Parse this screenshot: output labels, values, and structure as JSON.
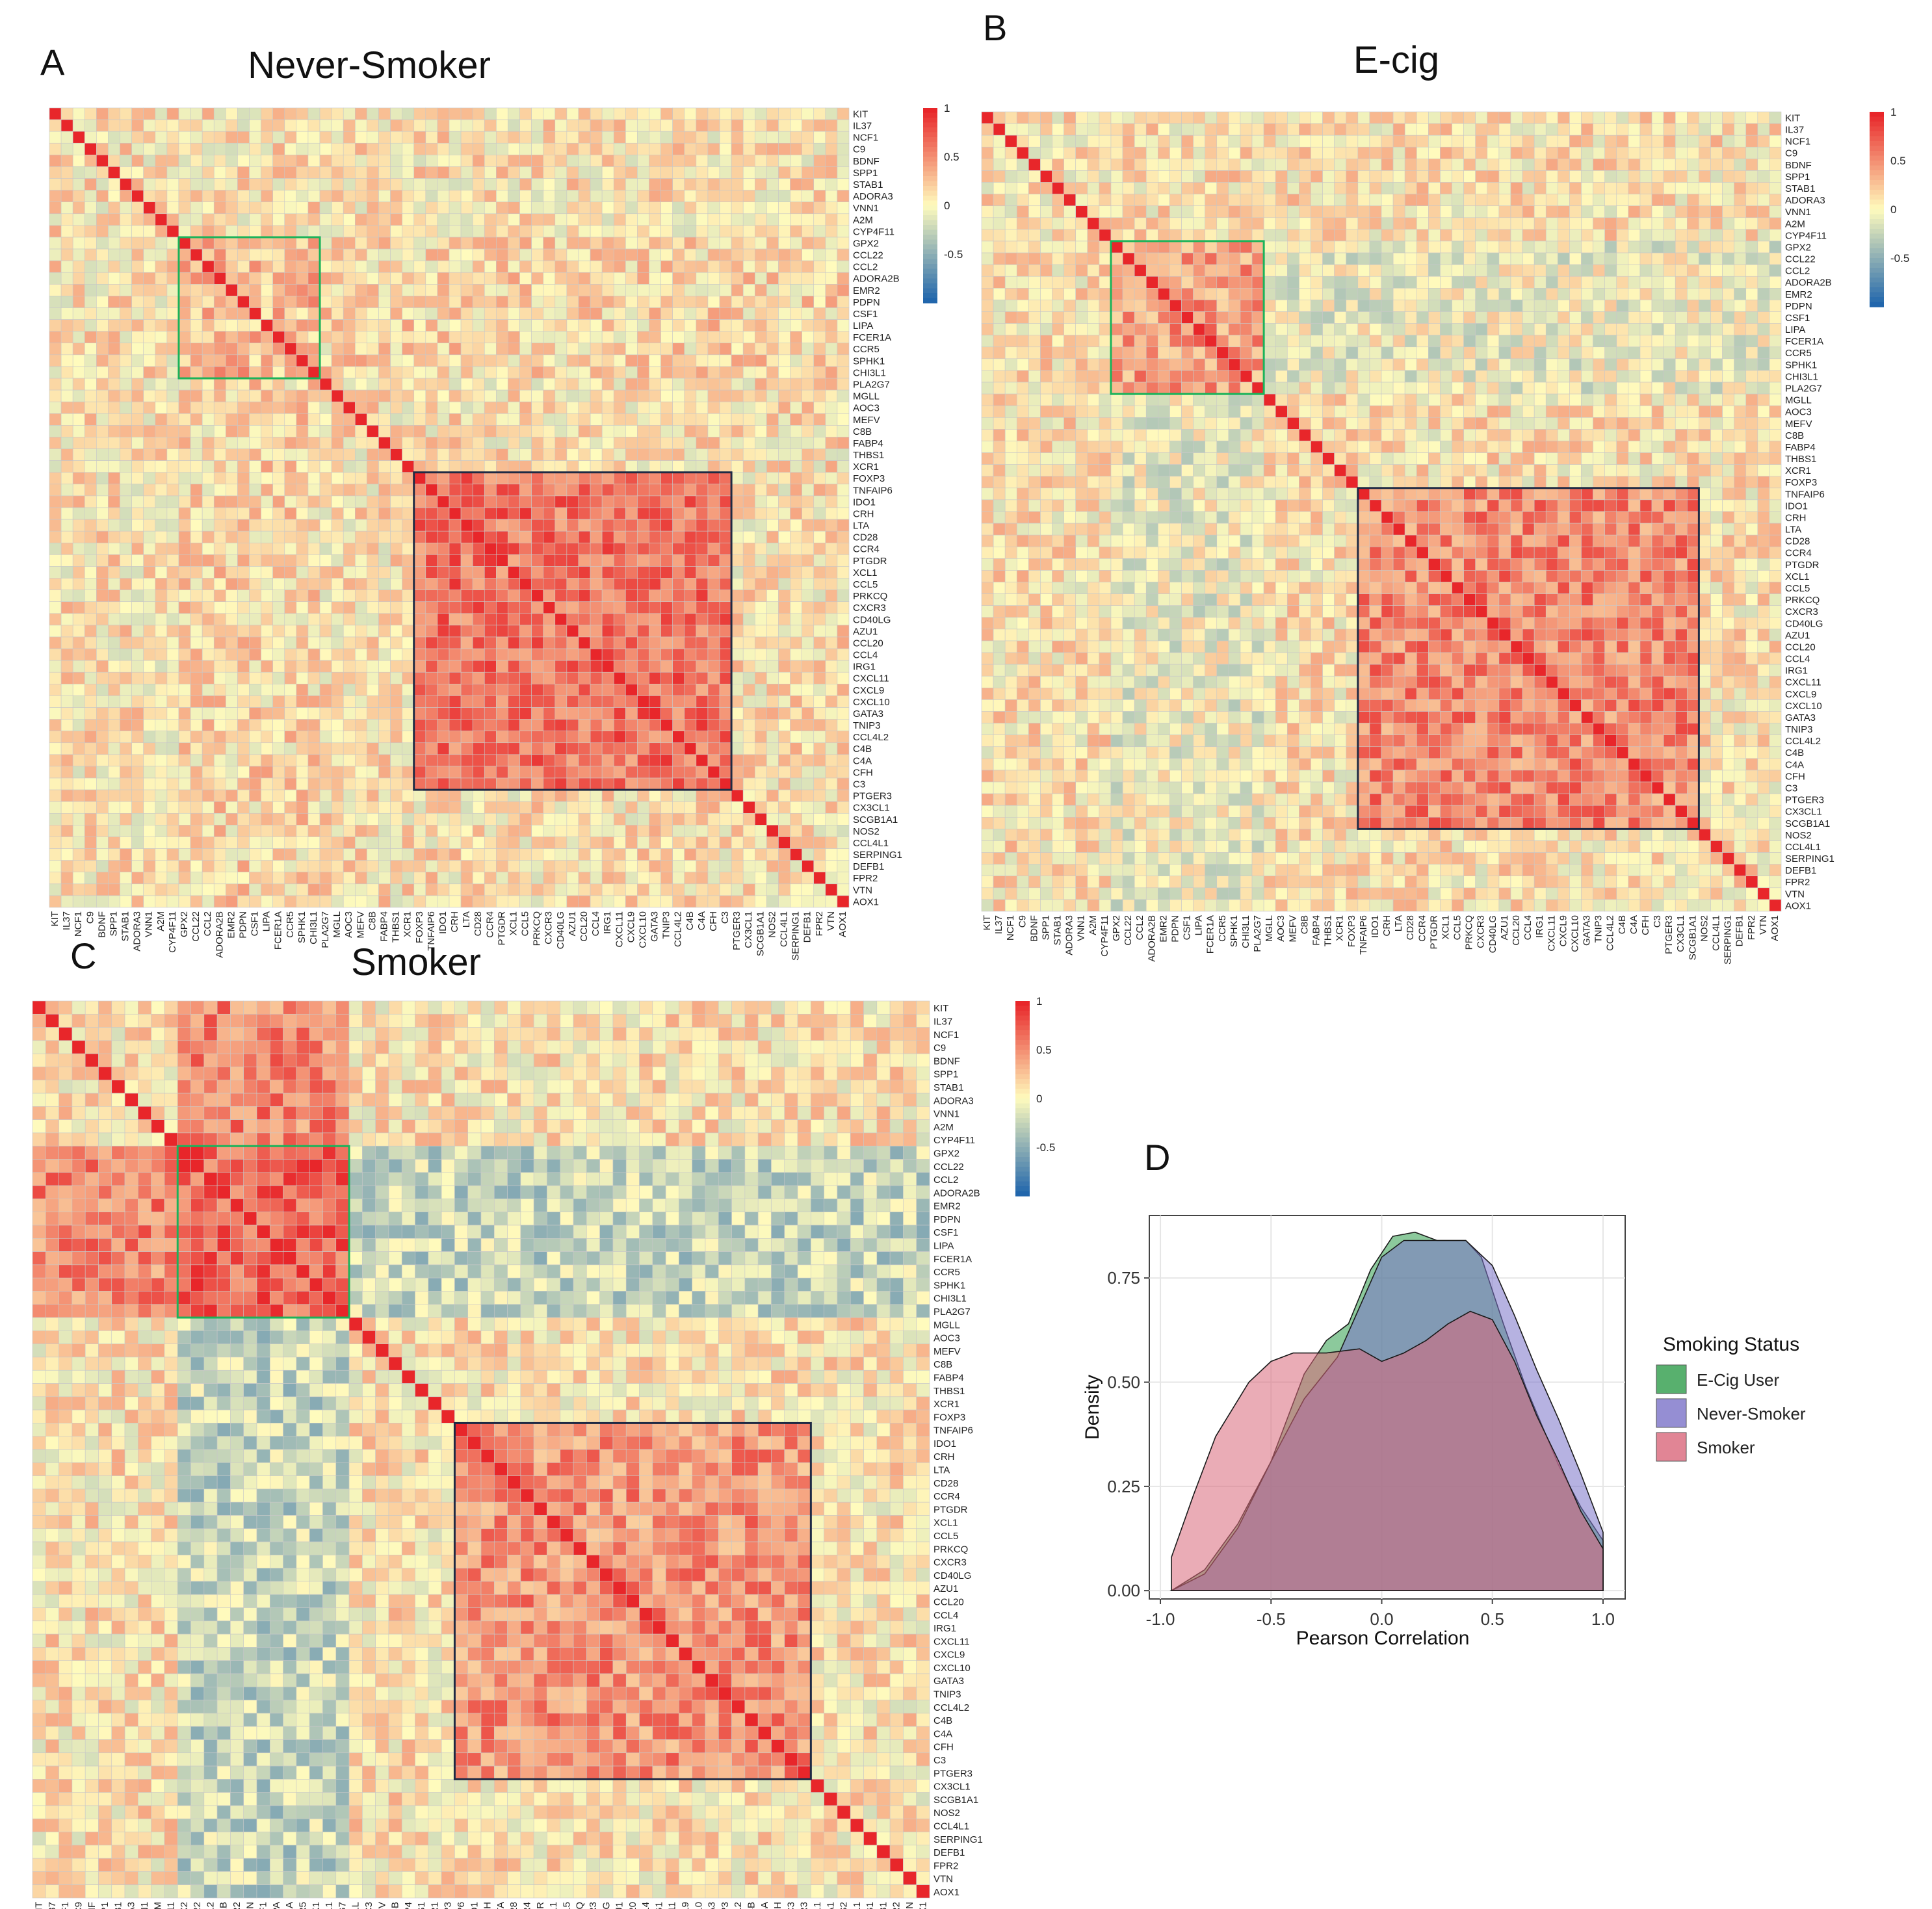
{
  "genes": [
    "KIT",
    "IL37",
    "NCF1",
    "C9",
    "BDNF",
    "SPP1",
    "STAB1",
    "ADORA3",
    "VNN1",
    "A2M",
    "CYP4F11",
    "GPX2",
    "CCL22",
    "CCL2",
    "ADORA2B",
    "EMR2",
    "PDPN",
    "CSF1",
    "LIPA",
    "FCER1A",
    "CCR5",
    "SPHK1",
    "CHI3L1",
    "PLA2G7",
    "MGLL",
    "AOC3",
    "MEFV",
    "C8B",
    "FABP4",
    "THBS1",
    "XCR1",
    "FOXP3",
    "TNFAIP6",
    "IDO1",
    "CRH",
    "LTA",
    "CD28",
    "CCR4",
    "PTGDR",
    "XCL1",
    "CCL5",
    "PRKCQ",
    "CXCR3",
    "CD40LG",
    "AZU1",
    "CCL20",
    "CCL4",
    "IRG1",
    "CXCL11",
    "CXCL9",
    "CXCL10",
    "GATA3",
    "TNIP3",
    "CCL4L2",
    "C4B",
    "C4A",
    "CFH",
    "C3",
    "PTGER3",
    "CX3CL1",
    "SCGB1A1",
    "NOS2",
    "CCL4L1",
    "SERPING1",
    "DEFB1",
    "FPR2",
    "VTN",
    "AOX1"
  ],
  "colorscale": {
    "low": "#2166ac",
    "mid": "#fffbbd",
    "high": "#e8262a",
    "ticks": [
      "1",
      "0.5",
      "0",
      "-0.5"
    ]
  },
  "panels": [
    {
      "letter": "A",
      "title": "Never-Smoker",
      "green_box_genes": [
        "GPX2",
        "CHI3L1"
      ],
      "black_box_genes": [
        "FOXP3",
        "C3"
      ]
    },
    {
      "letter": "B",
      "title": "E-cig",
      "green_box_genes": [
        "GPX2",
        "PLA2G7"
      ],
      "black_box_genes": [
        "TNFAIP6",
        "SCGB1A1"
      ]
    },
    {
      "letter": "C",
      "title": "Smoker",
      "green_box_genes": [
        "GPX2",
        "PLA2G7"
      ],
      "black_box_genes": [
        "TNFAIP6",
        "PTGER3"
      ]
    }
  ],
  "chart_data": {
    "type": "area",
    "panel_letter": "D",
    "title": "",
    "xlabel": "Pearson Correlation",
    "ylabel": "Density",
    "xlim": [
      -1.05,
      1.1
    ],
    "ylim": [
      -0.02,
      0.9
    ],
    "x_ticks": [
      "-1.0",
      "-0.5",
      "0.0",
      "0.5",
      "1.0"
    ],
    "y_ticks": [
      "0.00",
      "0.25",
      "0.50",
      "0.75"
    ],
    "legend_title": "Smoking Status",
    "legend_position": "right",
    "series": [
      {
        "name": "E-Cig User",
        "color": "#2e9c4a",
        "points": [
          [
            -0.95,
            0.0
          ],
          [
            -0.8,
            0.05
          ],
          [
            -0.65,
            0.16
          ],
          [
            -0.5,
            0.31
          ],
          [
            -0.35,
            0.52
          ],
          [
            -0.25,
            0.6
          ],
          [
            -0.15,
            0.64
          ],
          [
            -0.05,
            0.77
          ],
          [
            0.05,
            0.85
          ],
          [
            0.15,
            0.86
          ],
          [
            0.25,
            0.84
          ],
          [
            0.38,
            0.84
          ],
          [
            0.45,
            0.8
          ],
          [
            0.55,
            0.64
          ],
          [
            0.65,
            0.49
          ],
          [
            0.8,
            0.3
          ],
          [
            0.9,
            0.2
          ],
          [
            1.0,
            0.12
          ]
        ]
      },
      {
        "name": "Never-Smoker",
        "color": "#7a72c8",
        "points": [
          [
            -0.95,
            0.0
          ],
          [
            -0.8,
            0.04
          ],
          [
            -0.65,
            0.15
          ],
          [
            -0.5,
            0.31
          ],
          [
            -0.35,
            0.46
          ],
          [
            -0.2,
            0.56
          ],
          [
            -0.1,
            0.68
          ],
          [
            0.0,
            0.8
          ],
          [
            0.1,
            0.84
          ],
          [
            0.25,
            0.84
          ],
          [
            0.38,
            0.84
          ],
          [
            0.5,
            0.78
          ],
          [
            0.6,
            0.66
          ],
          [
            0.7,
            0.53
          ],
          [
            0.8,
            0.41
          ],
          [
            0.9,
            0.28
          ],
          [
            1.0,
            0.14
          ]
        ]
      },
      {
        "name": "Smoker",
        "color": "#d9677a",
        "points": [
          [
            -0.95,
            0.08
          ],
          [
            -0.85,
            0.23
          ],
          [
            -0.75,
            0.37
          ],
          [
            -0.6,
            0.5
          ],
          [
            -0.5,
            0.55
          ],
          [
            -0.4,
            0.57
          ],
          [
            -0.25,
            0.57
          ],
          [
            -0.1,
            0.58
          ],
          [
            0.0,
            0.55
          ],
          [
            0.1,
            0.57
          ],
          [
            0.2,
            0.6
          ],
          [
            0.3,
            0.64
          ],
          [
            0.4,
            0.67
          ],
          [
            0.5,
            0.65
          ],
          [
            0.6,
            0.55
          ],
          [
            0.7,
            0.42
          ],
          [
            0.8,
            0.31
          ],
          [
            0.9,
            0.19
          ],
          [
            1.0,
            0.1
          ]
        ]
      }
    ]
  }
}
